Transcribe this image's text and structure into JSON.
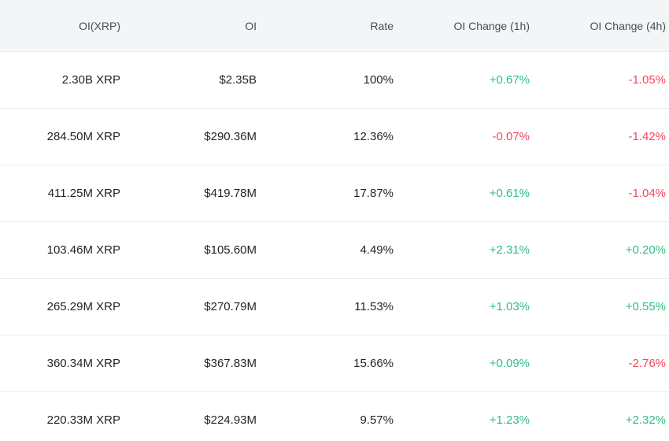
{
  "headers": {
    "oi_xrp": "OI(XRP)",
    "oi": "OI",
    "rate": "Rate",
    "change_1h": "OI Change (1h)",
    "change_4h": "OI Change (4h)"
  },
  "colors": {
    "positive": "#2ebd85",
    "negative": "#f6465d",
    "header_bg": "#f4f5f7"
  },
  "rows": [
    {
      "oi_xrp": "2.30B XRP",
      "oi": "$2.35B",
      "rate": "100%",
      "change_1h": "+0.67%",
      "change_4h": "-1.05%"
    },
    {
      "oi_xrp": "284.50M XRP",
      "oi": "$290.36M",
      "rate": "12.36%",
      "change_1h": "-0.07%",
      "change_4h": "-1.42%"
    },
    {
      "oi_xrp": "411.25M XRP",
      "oi": "$419.78M",
      "rate": "17.87%",
      "change_1h": "+0.61%",
      "change_4h": "-1.04%"
    },
    {
      "oi_xrp": "103.46M XRP",
      "oi": "$105.60M",
      "rate": "4.49%",
      "change_1h": "+2.31%",
      "change_4h": "+0.20%"
    },
    {
      "oi_xrp": "265.29M XRP",
      "oi": "$270.79M",
      "rate": "11.53%",
      "change_1h": "+1.03%",
      "change_4h": "+0.55%"
    },
    {
      "oi_xrp": "360.34M XRP",
      "oi": "$367.83M",
      "rate": "15.66%",
      "change_1h": "+0.09%",
      "change_4h": "-2.76%"
    },
    {
      "oi_xrp": "220.33M XRP",
      "oi": "$224.93M",
      "rate": "9.57%",
      "change_1h": "+1.23%",
      "change_4h": "+2.32%"
    }
  ]
}
